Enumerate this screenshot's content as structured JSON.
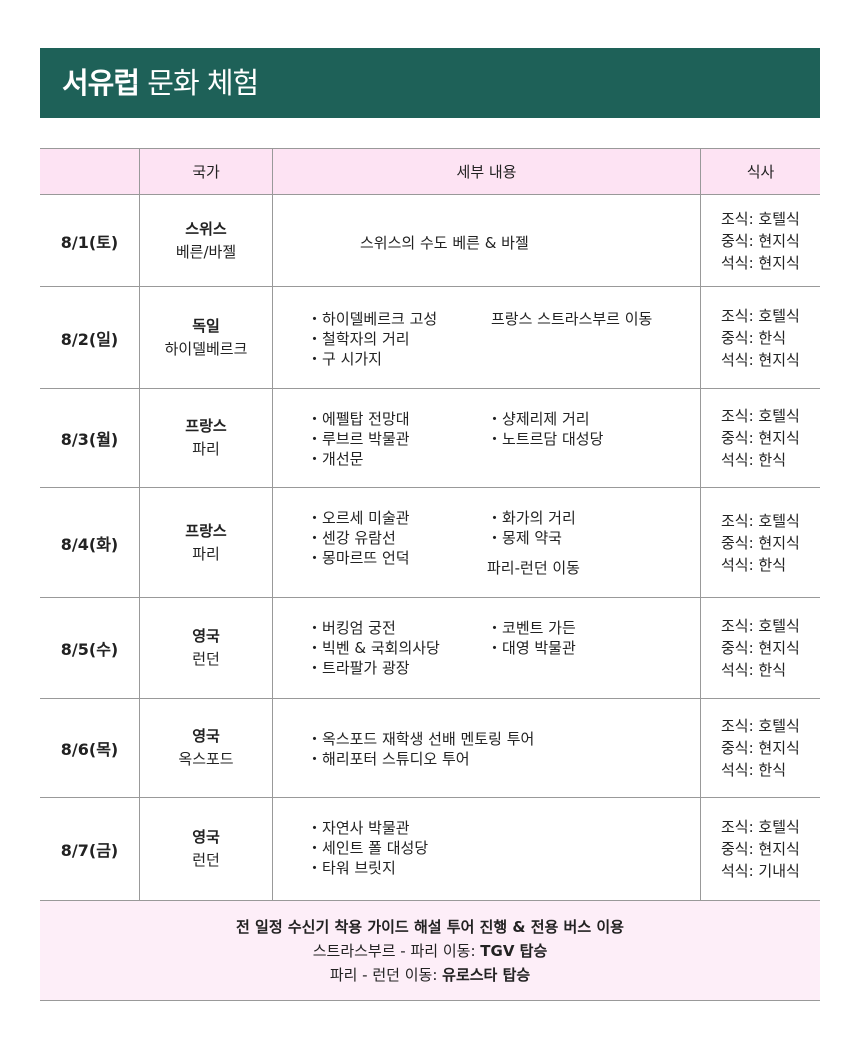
{
  "title": {
    "bold": "서유럽",
    "rest": " 문화 체험"
  },
  "colors": {
    "title_bg": "#1e6158",
    "header_bg": "#fde3f3",
    "footer_bg": "#fdeef8"
  },
  "headers": [
    "",
    "국가",
    "세부 내용",
    "식사"
  ],
  "rows": [
    {
      "date": "8/1(토)",
      "country": "스위스",
      "city": "베른/바젤",
      "left": [
        {
          "t": "스위스의 수도 베른 & 바젤",
          "b": false
        }
      ],
      "right": [],
      "meals": [
        "조식: 호텔식",
        "중식: 현지식",
        "석식: 현지식"
      ]
    },
    {
      "date": "8/2(일)",
      "country": "독일",
      "city": "하이델베르크",
      "left": [
        {
          "t": "하이델베르크 고성",
          "b": true
        },
        {
          "t": "철학자의 거리",
          "b": true
        },
        {
          "t": "구 시가지",
          "b": true
        }
      ],
      "right": [
        {
          "t": "프랑스 스트라스부르 이동",
          "b": false
        }
      ],
      "meals": [
        "조식: 호텔식",
        "중식: 한식",
        "석식: 현지식"
      ]
    },
    {
      "date": "8/3(월)",
      "country": "프랑스",
      "city": "파리",
      "left": [
        {
          "t": "에펠탑 전망대",
          "b": true
        },
        {
          "t": "루브르 박물관",
          "b": true
        },
        {
          "t": "개선문",
          "b": true
        }
      ],
      "right": [
        {
          "t": "샹제리제 거리",
          "b": true
        },
        {
          "t": "노트르담 대성당",
          "b": true
        }
      ],
      "meals": [
        "조식: 호텔식",
        "중식: 현지식",
        "석식: 한식"
      ]
    },
    {
      "date": "8/4(화)",
      "country": "프랑스",
      "city": "파리",
      "left": [
        {
          "t": "오르세 미술관",
          "b": true
        },
        {
          "t": "센강 유람선",
          "b": true
        },
        {
          "t": "몽마르뜨 언덕",
          "b": true
        }
      ],
      "right": [
        {
          "t": "화가의 거리",
          "b": true
        },
        {
          "t": "몽제 약국",
          "b": true
        },
        {
          "t": "파리-런던 이동",
          "b": false
        }
      ],
      "meals": [
        "조식: 호텔식",
        "중식: 현지식",
        "석식: 한식"
      ]
    },
    {
      "date": "8/5(수)",
      "country": "영국",
      "city": "런던",
      "left": [
        {
          "t": "버킹엄 궁전",
          "b": true
        },
        {
          "t": "빅벤 & 국회의사당",
          "b": true
        },
        {
          "t": "트라팔가 광장",
          "b": true
        }
      ],
      "right": [
        {
          "t": "코벤트 가든",
          "b": true
        },
        {
          "t": "대영 박물관",
          "b": true
        }
      ],
      "meals": [
        "조식: 호텔식",
        "중식: 현지식",
        "석식: 한식"
      ]
    },
    {
      "date": "8/6(목)",
      "country": "영국",
      "city": "옥스포드",
      "left": [
        {
          "t": "옥스포드 재학생 선배 멘토링 투어",
          "b": true
        },
        {
          "t": "해리포터 스튜디오 투어",
          "b": true
        }
      ],
      "right": [],
      "meals": [
        "조식: 호텔식",
        "중식: 현지식",
        "석식: 한식"
      ]
    },
    {
      "date": "8/7(금)",
      "country": "영국",
      "city": "런던",
      "left": [
        {
          "t": "자연사 박물관",
          "b": true
        },
        {
          "t": "세인트 폴 대성당",
          "b": true
        },
        {
          "t": "타워 브릿지",
          "b": true
        }
      ],
      "right": [],
      "meals": [
        "조식: 호텔식",
        "중식: 현지식",
        "석식: 기내식"
      ]
    }
  ],
  "footer": {
    "line1": "전 일정 수신기 착용 가이드 해설 투어 진행 & 전용 버스 이용",
    "line2_prefix": "스트라스부르 - 파리 이동: ",
    "line2_bold": "TGV 탑승",
    "line3_prefix": "파리 - 런던 이동: ",
    "line3_bold": "유로스타 탑승"
  }
}
